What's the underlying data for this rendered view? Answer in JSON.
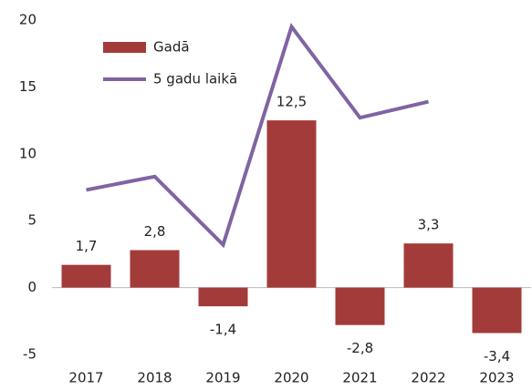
{
  "chart_data": {
    "type": "bar-line",
    "categories": [
      "2017",
      "2018",
      "2019",
      "2020",
      "2021",
      "2022",
      "2023"
    ],
    "series": [
      {
        "name": "Gadā",
        "type": "bar",
        "color": "#a33b3b",
        "values": [
          1.7,
          2.8,
          -1.4,
          12.5,
          -2.8,
          3.3,
          -3.4
        ],
        "value_labels": [
          "1,7",
          "2,8",
          "-1,4",
          "12,5",
          "-2,8",
          "3,3",
          "-3,4"
        ]
      },
      {
        "name": "5 gadu laikā",
        "type": "line",
        "color": "#8064a2",
        "values": [
          7.3,
          8.3,
          3.2,
          19.5,
          12.7,
          13.9,
          null
        ]
      }
    ],
    "ylim": [
      -5,
      20
    ],
    "yticks": [
      -5,
      0,
      5,
      10,
      15,
      20
    ],
    "legend": "upper-left",
    "grid": false
  }
}
